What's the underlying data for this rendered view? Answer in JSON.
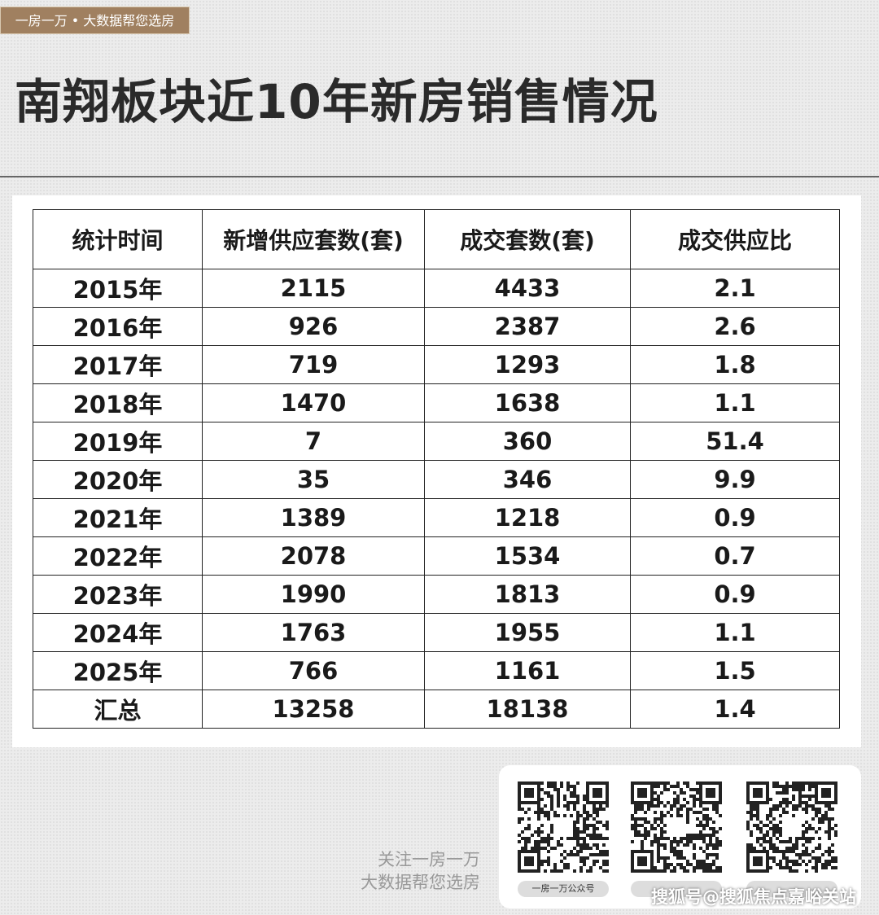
{
  "header": {
    "tag": "一房一万 • 大数据帮您选房",
    "title": "南翔板块近10年新房销售情况"
  },
  "table": {
    "headers": [
      "统计时间",
      "新增供应套数(套)",
      "成交套数(套)",
      "成交供应比"
    ],
    "rows": [
      [
        "2015年",
        "2115",
        "4433",
        "2.1"
      ],
      [
        "2016年",
        "926",
        "2387",
        "2.6"
      ],
      [
        "2017年",
        "719",
        "1293",
        "1.8"
      ],
      [
        "2018年",
        "1470",
        "1638",
        "1.1"
      ],
      [
        "2019年",
        "7",
        "360",
        "51.4"
      ],
      [
        "2020年",
        "35",
        "346",
        "9.9"
      ],
      [
        "2021年",
        "1389",
        "1218",
        "0.9"
      ],
      [
        "2022年",
        "2078",
        "1534",
        "0.7"
      ],
      [
        "2023年",
        "1990",
        "1813",
        "0.9"
      ],
      [
        "2024年",
        "1763",
        "1955",
        "1.1"
      ],
      [
        "2025年",
        "766",
        "1161",
        "1.5"
      ],
      [
        "汇总",
        "13258",
        "18138",
        "1.4"
      ]
    ]
  },
  "footer": {
    "follow": "关注一房一万",
    "slogan": "大数据帮您选房",
    "qr_labels": [
      "一房一万公众号"
    ],
    "watermark": "搜狐号@搜狐焦点嘉峪关站"
  }
}
